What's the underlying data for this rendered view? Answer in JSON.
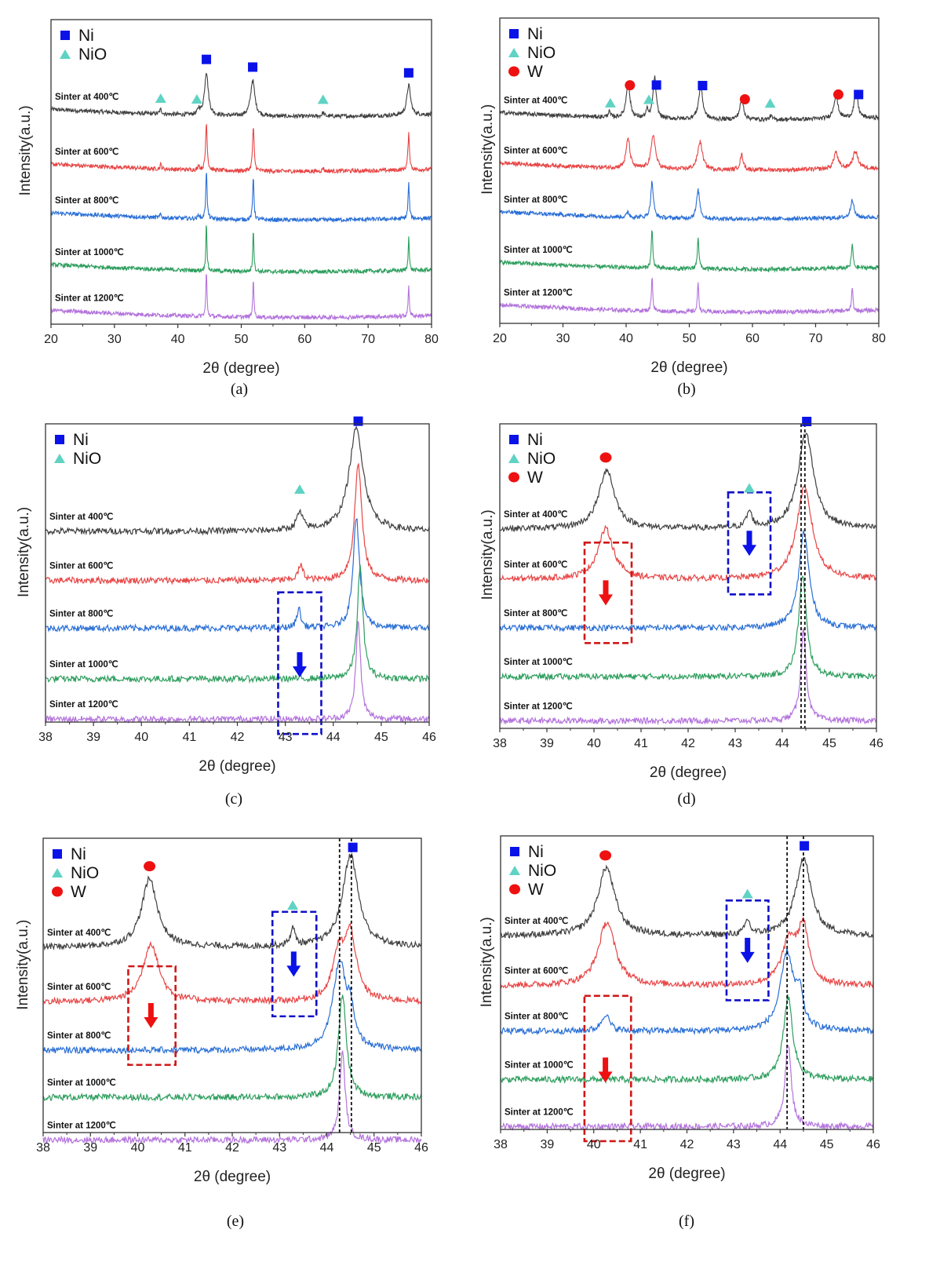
{
  "figure": {
    "captions": [
      "(a)",
      "(b)",
      "(c)",
      "(d)",
      "(e)",
      "(f)"
    ]
  },
  "colors": {
    "ni_marker": "#0a12e8",
    "nio_marker": "#5fd3c4",
    "w_marker": "#ee1111",
    "series": [
      "#404040",
      "#e84545",
      "#2a6fd6",
      "#2e9e5e",
      "#b373dc"
    ],
    "blue_box": "#1010c8",
    "red_box": "#d01818",
    "blue_arrow": "#0a12e8",
    "red_arrow": "#ee1111",
    "ref_line": "#111111"
  },
  "chart_data": [
    {
      "id": "a",
      "type": "line",
      "title": "",
      "xlabel": "2θ (degree)",
      "ylabel": "Intensity(a.u.)",
      "xlim": [
        20,
        80
      ],
      "xticks": [
        20,
        30,
        40,
        50,
        60,
        70,
        80
      ],
      "legend": [
        {
          "symbol": "square",
          "label": "Ni"
        },
        {
          "symbol": "triangle",
          "label": "NiO"
        }
      ],
      "legend_position": "top-left",
      "series": [
        {
          "name": "Sinter at 400℃",
          "peaks": [
            [
              37.3,
              0.25,
              0.2
            ],
            [
              43.3,
              0.3,
              0.2
            ],
            [
              44.5,
              2.3,
              0.35
            ],
            [
              51.8,
              1.9,
              0.4
            ],
            [
              62.9,
              0.2,
              0.2
            ],
            [
              76.4,
              1.6,
              0.35
            ]
          ]
        },
        {
          "name": "Sinter at 600℃",
          "peaks": [
            [
              37.3,
              0.25,
              0.12
            ],
            [
              43.3,
              0.3,
              0.12
            ],
            [
              44.5,
              2.5,
              0.15
            ],
            [
              51.9,
              2.3,
              0.15
            ],
            [
              62.9,
              0.2,
              0.12
            ],
            [
              76.4,
              1.9,
              0.15
            ]
          ]
        },
        {
          "name": "Sinter at 800℃",
          "peaks": [
            [
              37.3,
              0.2,
              0.12
            ],
            [
              43.3,
              0.25,
              0.12
            ],
            [
              44.5,
              2.6,
              0.12
            ],
            [
              51.9,
              2.3,
              0.12
            ],
            [
              76.4,
              1.9,
              0.12
            ]
          ]
        },
        {
          "name": "Sinter at 1000℃",
          "peaks": [
            [
              44.5,
              2.6,
              0.1
            ],
            [
              51.9,
              2.3,
              0.1
            ],
            [
              76.4,
              1.9,
              0.1
            ]
          ]
        },
        {
          "name": "Sinter at 1200℃",
          "peaks": [
            [
              44.5,
              2.4,
              0.1
            ],
            [
              51.9,
              2.1,
              0.1
            ],
            [
              76.4,
              1.7,
              0.1
            ]
          ]
        }
      ],
      "phase_markers": [
        {
          "phase": "Ni",
          "x": [
            44.5,
            51.8,
            76.4
          ]
        },
        {
          "phase": "NiO",
          "x": [
            37.3,
            43.0,
            62.9
          ]
        }
      ],
      "annotations": []
    },
    {
      "id": "b",
      "type": "line",
      "title": "",
      "xlabel": "2θ (degree)",
      "ylabel": "Intensity(a.u.)",
      "xlim": [
        20,
        80
      ],
      "xticks": [
        20,
        30,
        40,
        50,
        60,
        70,
        80
      ],
      "legend": [
        {
          "symbol": "square",
          "label": "Ni"
        },
        {
          "symbol": "triangle",
          "label": "NiO"
        },
        {
          "symbol": "circle",
          "label": "W"
        }
      ],
      "legend_position": "top-left",
      "series": [
        {
          "name": "Sinter at 400℃",
          "peaks": [
            [
              37.3,
              0.3,
              0.2
            ],
            [
              40.3,
              1.9,
              0.35
            ],
            [
              43.3,
              0.4,
              0.2
            ],
            [
              44.5,
              2.2,
              0.3
            ],
            [
              51.8,
              1.7,
              0.4
            ],
            [
              58.3,
              1.1,
              0.35
            ],
            [
              62.9,
              0.2,
              0.2
            ],
            [
              73.2,
              1.2,
              0.4
            ],
            [
              76.4,
              1.4,
              0.35
            ]
          ]
        },
        {
          "name": "Sinter at 600℃",
          "peaks": [
            [
              40.3,
              1.6,
              0.35
            ],
            [
              44.3,
              1.8,
              0.4
            ],
            [
              51.7,
              1.5,
              0.45
            ],
            [
              58.3,
              0.8,
              0.3
            ],
            [
              73.2,
              0.9,
              0.4
            ],
            [
              76.3,
              0.9,
              0.5
            ]
          ]
        },
        {
          "name": "Sinter at 800℃",
          "peaks": [
            [
              40.3,
              0.3,
              0.2
            ],
            [
              44.1,
              1.9,
              0.25
            ],
            [
              51.4,
              1.5,
              0.3
            ],
            [
              75.8,
              1.0,
              0.3
            ]
          ]
        },
        {
          "name": "Sinter at 1000℃",
          "peaks": [
            [
              44.1,
              2.0,
              0.15
            ],
            [
              51.4,
              1.7,
              0.15
            ],
            [
              75.8,
              1.3,
              0.15
            ]
          ]
        },
        {
          "name": "Sinter at 1200℃",
          "peaks": [
            [
              44.1,
              1.9,
              0.12
            ],
            [
              51.4,
              1.6,
              0.12
            ],
            [
              75.8,
              1.3,
              0.12
            ]
          ]
        }
      ],
      "phase_markers": [
        {
          "phase": "Ni",
          "x": [
            44.8,
            52.1,
            76.8
          ]
        },
        {
          "phase": "NiO",
          "x": [
            37.5,
            43.6,
            62.8
          ]
        },
        {
          "phase": "W",
          "x": [
            40.6,
            58.8,
            73.6
          ]
        }
      ],
      "annotations": []
    },
    {
      "id": "c",
      "type": "line",
      "title": "",
      "xlabel": "2θ (degree)",
      "ylabel": "Intensity(a.u.)",
      "xlim": [
        38,
        46
      ],
      "xticks": [
        38,
        39,
        40,
        41,
        42,
        43,
        44,
        45,
        46
      ],
      "legend": [
        {
          "symbol": "square",
          "label": "Ni"
        },
        {
          "symbol": "triangle",
          "label": "NiO"
        }
      ],
      "legend_position": "top-left",
      "series": [
        {
          "name": "Sinter at 400℃",
          "peaks": [
            [
              43.3,
              0.35,
              0.08
            ],
            [
              44.48,
              2.1,
              0.18
            ]
          ]
        },
        {
          "name": "Sinter at 600℃",
          "peaks": [
            [
              43.32,
              0.3,
              0.06
            ],
            [
              44.52,
              2.4,
              0.09
            ]
          ]
        },
        {
          "name": "Sinter at 800℃",
          "peaks": [
            [
              43.28,
              0.4,
              0.05
            ],
            [
              44.48,
              2.3,
              0.08
            ]
          ]
        },
        {
          "name": "Sinter at 1000℃",
          "peaks": [
            [
              44.56,
              2.3,
              0.07
            ]
          ]
        },
        {
          "name": "Sinter at 1200℃",
          "peaks": [
            [
              44.52,
              2.0,
              0.06
            ]
          ]
        }
      ],
      "phase_markers": [
        {
          "phase": "Ni",
          "x": [
            44.52
          ]
        },
        {
          "phase": "NiO",
          "x": [
            43.3
          ]
        }
      ],
      "annotations": [
        {
          "type": "dashed-box",
          "color": "blue",
          "x": [
            42.85,
            43.75
          ],
          "series_span": [
            2,
            4
          ]
        },
        {
          "type": "arrow-down",
          "color": "blue",
          "x": 43.3
        }
      ]
    },
    {
      "id": "d",
      "type": "line",
      "title": "",
      "xlabel": "2θ (degree)",
      "ylabel": "Intensity(a.u.)",
      "xlim": [
        38,
        46
      ],
      "xticks": [
        38,
        39,
        40,
        41,
        42,
        43,
        44,
        45,
        46
      ],
      "legend": [
        {
          "symbol": "square",
          "label": "Ni"
        },
        {
          "symbol": "triangle",
          "label": "NiO"
        },
        {
          "symbol": "circle",
          "label": "W"
        }
      ],
      "legend_position": "top-left",
      "series": [
        {
          "name": "Sinter at 400℃",
          "peaks": [
            [
              40.27,
              1.3,
              0.2
            ],
            [
              43.3,
              0.35,
              0.07
            ],
            [
              44.5,
              2.1,
              0.2
            ]
          ]
        },
        {
          "name": "Sinter at 600℃",
          "peaks": [
            [
              40.25,
              1.1,
              0.2
            ],
            [
              44.47,
              2.0,
              0.2
            ]
          ]
        },
        {
          "name": "Sinter at 800℃",
          "peaks": [
            [
              44.46,
              2.1,
              0.13
            ]
          ]
        },
        {
          "name": "Sinter at 1000℃",
          "peaks": [
            [
              44.43,
              2.2,
              0.1
            ]
          ]
        },
        {
          "name": "Sinter at 1200℃",
          "peaks": [
            [
              44.45,
              2.0,
              0.07
            ]
          ]
        }
      ],
      "phase_markers": [
        {
          "phase": "Ni",
          "x": [
            44.52
          ]
        },
        {
          "phase": "NiO",
          "x": [
            43.3
          ]
        },
        {
          "phase": "W",
          "x": [
            40.25
          ]
        }
      ],
      "reference_lines_x": [
        44.4,
        44.48
      ],
      "annotations": [
        {
          "type": "dashed-box",
          "color": "blue",
          "x": [
            42.85,
            43.75
          ],
          "series_span": [
            0,
            1
          ]
        },
        {
          "type": "arrow-down",
          "color": "blue",
          "x": 43.3
        },
        {
          "type": "dashed-box",
          "color": "red",
          "x": [
            39.8,
            40.8
          ],
          "series_span": [
            1,
            2
          ]
        },
        {
          "type": "arrow-down",
          "color": "red",
          "x": 40.25
        }
      ]
    },
    {
      "id": "e",
      "type": "line",
      "title": "",
      "xlabel": "2θ (degree)",
      "ylabel": "Intensity(a.u.)",
      "xlim": [
        38,
        46
      ],
      "xticks": [
        38,
        39,
        40,
        41,
        42,
        43,
        44,
        45,
        46
      ],
      "legend": [
        {
          "symbol": "square",
          "label": "Ni"
        },
        {
          "symbol": "triangle",
          "label": "NiO"
        },
        {
          "symbol": "circle",
          "label": "W"
        }
      ],
      "legend_position": "top-left",
      "series": [
        {
          "name": "Sinter at 400℃",
          "peaks": [
            [
              40.25,
              1.4,
              0.2
            ],
            [
              43.28,
              0.35,
              0.06
            ],
            [
              44.5,
              1.9,
              0.2
            ]
          ]
        },
        {
          "name": "Sinter at 600℃",
          "peaks": [
            [
              40.28,
              1.2,
              0.2
            ],
            [
              44.25,
              0.9,
              0.15
            ],
            [
              44.5,
              1.3,
              0.15
            ]
          ]
        },
        {
          "name": "Sinter at 800℃",
          "peaks": [
            [
              44.27,
              1.8,
              0.17
            ],
            [
              44.5,
              0.6,
              0.08
            ]
          ]
        },
        {
          "name": "Sinter at 1000℃",
          "peaks": [
            [
              44.33,
              2.1,
              0.1
            ]
          ]
        },
        {
          "name": "Sinter at 1200℃",
          "peaks": [
            [
              44.33,
              1.8,
              0.07
            ]
          ]
        }
      ],
      "phase_markers": [
        {
          "phase": "Ni",
          "x": [
            44.55
          ]
        },
        {
          "phase": "NiO",
          "x": [
            43.28
          ]
        },
        {
          "phase": "W",
          "x": [
            40.25
          ]
        }
      ],
      "reference_lines_x": [
        44.27,
        44.52
      ],
      "annotations": [
        {
          "type": "dashed-box",
          "color": "blue",
          "x": [
            42.85,
            43.78
          ],
          "series_span": [
            0,
            1
          ]
        },
        {
          "type": "arrow-down",
          "color": "blue",
          "x": 43.3
        },
        {
          "type": "dashed-box",
          "color": "red",
          "x": [
            39.8,
            40.8
          ],
          "series_span": [
            1,
            2
          ]
        },
        {
          "type": "arrow-down",
          "color": "red",
          "x": 40.28
        }
      ]
    },
    {
      "id": "f",
      "type": "line",
      "title": "",
      "xlabel": "2θ (degree)",
      "ylabel": "Intensity(a.u.)",
      "xlim": [
        38,
        46
      ],
      "xticks": [
        38,
        39,
        40,
        41,
        42,
        43,
        44,
        45,
        46
      ],
      "legend": [
        {
          "symbol": "square",
          "label": "Ni"
        },
        {
          "symbol": "triangle",
          "label": "NiO"
        },
        {
          "symbol": "circle",
          "label": "W"
        }
      ],
      "legend_position": "top-left",
      "series": [
        {
          "name": "Sinter at 400℃",
          "peaks": [
            [
              40.27,
              1.4,
              0.22
            ],
            [
              43.3,
              0.3,
              0.06
            ],
            [
              44.5,
              1.6,
              0.2
            ]
          ]
        },
        {
          "name": "Sinter at 600℃",
          "peaks": [
            [
              40.28,
              1.3,
              0.22
            ],
            [
              44.2,
              0.9,
              0.2
            ],
            [
              44.5,
              1.1,
              0.13
            ]
          ]
        },
        {
          "name": "Sinter at 800℃",
          "peaks": [
            [
              40.25,
              0.35,
              0.1
            ],
            [
              44.15,
              1.6,
              0.17
            ],
            [
              44.42,
              0.6,
              0.08
            ]
          ]
        },
        {
          "name": "Sinter at 1000℃",
          "peaks": [
            [
              44.17,
              1.7,
              0.12
            ]
          ]
        },
        {
          "name": "Sinter at 1200℃",
          "peaks": [
            [
              44.17,
              1.7,
              0.08
            ]
          ]
        }
      ],
      "phase_markers": [
        {
          "phase": "Ni",
          "x": [
            44.52
          ]
        },
        {
          "phase": "NiO",
          "x": [
            43.3
          ]
        },
        {
          "phase": "W",
          "x": [
            40.25
          ]
        }
      ],
      "reference_lines_x": [
        44.15,
        44.5
      ],
      "annotations": [
        {
          "type": "dashed-box",
          "color": "blue",
          "x": [
            42.85,
            43.75
          ],
          "series_span": [
            0,
            1
          ]
        },
        {
          "type": "arrow-down",
          "color": "blue",
          "x": 43.3
        },
        {
          "type": "dashed-box",
          "color": "red",
          "x": [
            39.8,
            40.8
          ],
          "series_span": [
            2,
            4
          ]
        },
        {
          "type": "arrow-down",
          "color": "red",
          "x": 40.25
        }
      ]
    }
  ]
}
